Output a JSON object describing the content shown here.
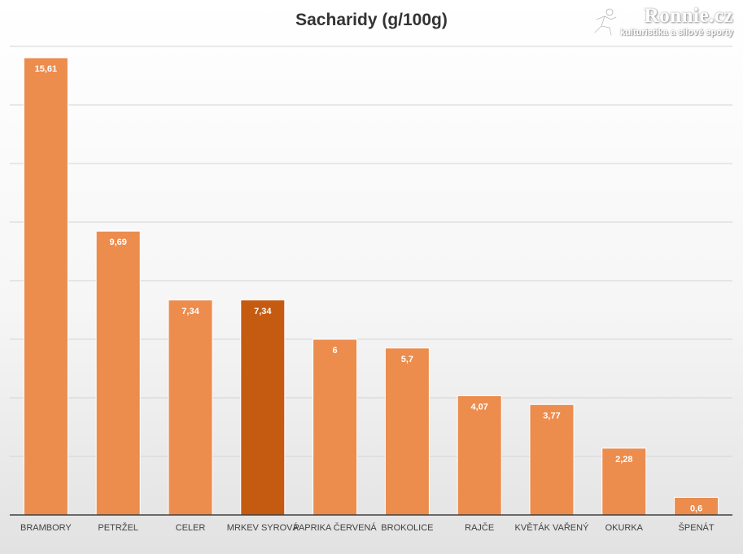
{
  "chart_data": {
    "type": "bar",
    "title": "Sacharidy (g/100g)",
    "categories": [
      "BRAMBORY",
      "PETRŽEL",
      "CELER",
      "MRKEV SYROVÁ",
      "PAPRIKA ČERVENÁ",
      "BROKOLICE",
      "RAJČE",
      "KVĚTÁK VAŘENÝ",
      "OKURKA",
      "ŠPENÁT"
    ],
    "values": [
      15.61,
      9.69,
      7.34,
      7.34,
      6,
      5.7,
      4.07,
      3.77,
      2.28,
      0.6
    ],
    "value_labels": [
      "15,61",
      "9,69",
      "7,34",
      "7,34",
      "6",
      "5,7",
      "4,07",
      "3,77",
      "2,28",
      "0,6"
    ],
    "highlight_index": 3,
    "ylim": [
      0,
      16
    ],
    "y_gridline_step": 2,
    "grid": true,
    "legend": "none",
    "xlabel": "",
    "ylabel": ""
  },
  "colors": {
    "bar": "#ec8c4d",
    "bar_highlight": "#c55a11",
    "bar_border": "#ffffff",
    "gridline": "#d4d4d4",
    "axis": "#404040"
  },
  "watermark": {
    "brand": "Ronnie.cz",
    "tagline": "kulturistika a silové sporty",
    "icon": "runner-icon"
  }
}
